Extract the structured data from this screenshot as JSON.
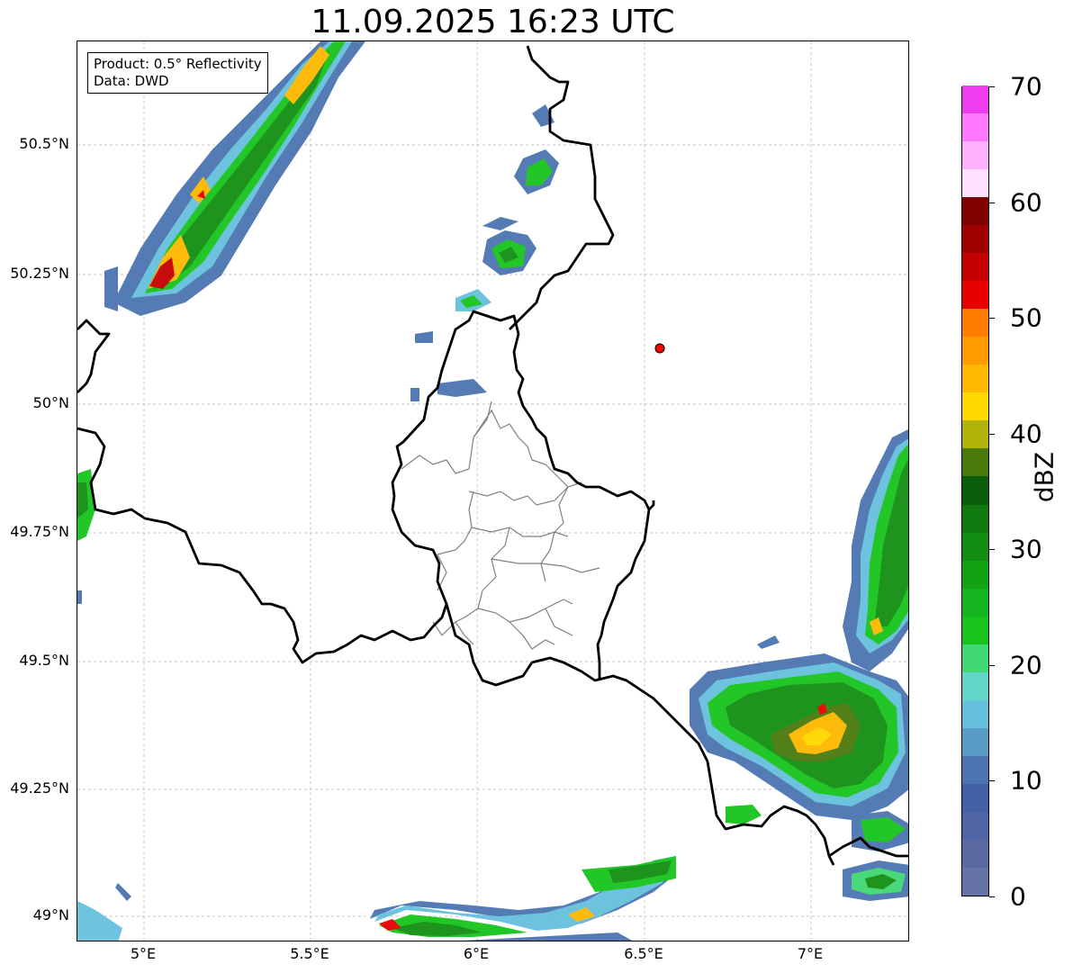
{
  "title": "11.09.2025 16:23 UTC",
  "info": {
    "product": "Product: 0.5° Reflectivity",
    "data": "Data: DWD"
  },
  "axes": {
    "lat_labels": [
      "50.5°N",
      "50.25°N",
      "50°N",
      "49.75°N",
      "49.5°N",
      "49.25°N",
      "49°N"
    ],
    "lon_labels": [
      "5°E",
      "5.5°E",
      "6°E",
      "6.5°E",
      "7°E"
    ]
  },
  "colorbar": {
    "label": "dBZ",
    "ticks": [
      "0",
      "10",
      "20",
      "30",
      "40",
      "50",
      "60",
      "70"
    ],
    "colors": [
      "#6673a6",
      "#5a6aa0",
      "#4f64a4",
      "#4460a4",
      "#4b74b0",
      "#5a9cc8",
      "#66c0dc",
      "#62d6c6",
      "#40d874",
      "#18c41c",
      "#14b41e",
      "#12a214",
      "#128e12",
      "#0e7a10",
      "#0c5e0c",
      "#4a7a0c",
      "#b0b40a",
      "#ffd800",
      "#ffb800",
      "#ff9c00",
      "#ff7c00",
      "#e80000",
      "#c40000",
      "#a00000",
      "#800000",
      "#ffe0ff",
      "#ffb0ff",
      "#ff78ff",
      "#ee3cee"
    ]
  },
  "markers": [
    {
      "name": "radar-site",
      "lon": 6.55,
      "lat": 50.11,
      "color": "#ff0000"
    }
  ]
}
